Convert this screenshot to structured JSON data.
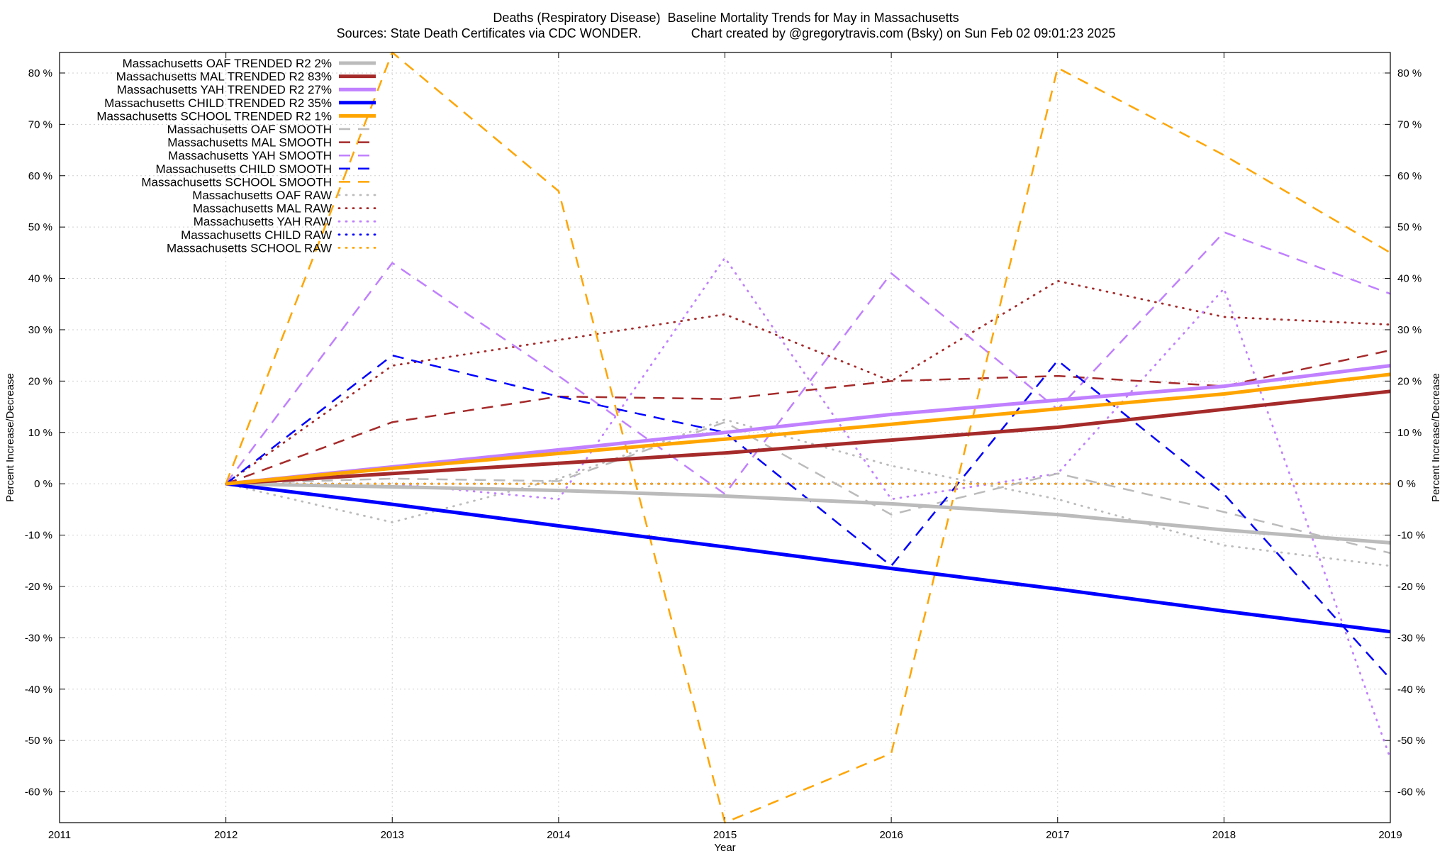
{
  "title": {
    "line1": "Deaths (Respiratory Disease)  Baseline Mortality Trends for May in Massachusetts",
    "line2": "Sources: State Death Certificates via CDC WONDER.              Chart created by @gregorytravis.com (Bsky) on Sun Feb 02 09:01:23 2025"
  },
  "chart_data": {
    "type": "line",
    "xlabel": "Year",
    "ylabel": "Percent Increase/Decrease",
    "y2label": "Percent Increase/Decrease",
    "xlim": [
      2011,
      2019
    ],
    "ylim": [
      -66,
      84
    ],
    "xticks": [
      2011,
      2012,
      2013,
      2014,
      2015,
      2016,
      2017,
      2018,
      2019
    ],
    "yticks": [
      -60,
      -50,
      -40,
      -30,
      -20,
      -10,
      0,
      10,
      20,
      30,
      40,
      50,
      60,
      70,
      80
    ],
    "ytick_suffix": " %",
    "grid": true,
    "legend_position": "top-left",
    "series": [
      {
        "name": "Massachusetts OAF TRENDED R2  2%",
        "color": "#bbbbbb",
        "style": "solid",
        "x": [
          2012,
          2013,
          2014,
          2015,
          2016,
          2017,
          2018,
          2019
        ],
        "values": [
          0,
          -0.6,
          -1.3,
          -2.4,
          -3.9,
          -6.0,
          -9.0,
          -11.5
        ]
      },
      {
        "name": "Massachusetts MAL TRENDED R2  83%",
        "color": "#a52a2a",
        "style": "solid",
        "x": [
          2012,
          2013,
          2014,
          2015,
          2016,
          2017,
          2018,
          2019
        ],
        "values": [
          0,
          2.0,
          4.0,
          6.0,
          8.5,
          11.0,
          14.5,
          18.0
        ]
      },
      {
        "name": "Massachusetts YAH TRENDED R2  27%",
        "color": "#c080ff",
        "style": "solid",
        "x": [
          2012,
          2013,
          2014,
          2015,
          2016,
          2017,
          2018,
          2019
        ],
        "values": [
          0,
          3.3,
          6.6,
          10.0,
          13.5,
          16.3,
          19.0,
          23.0
        ]
      },
      {
        "name": "Massachusetts CHILD TRENDED R2  35%",
        "color": "#0000ff",
        "style": "solid",
        "x": [
          2012,
          2013,
          2014,
          2015,
          2016,
          2017,
          2018,
          2019
        ],
        "values": [
          0,
          -4.0,
          -8.2,
          -12.3,
          -16.5,
          -20.5,
          -24.8,
          -28.8
        ]
      },
      {
        "name": "Massachusetts SCHOOL TRENDED R2  1%",
        "color": "#ffa500",
        "style": "solid",
        "x": [
          2012,
          2013,
          2014,
          2015,
          2016,
          2017,
          2018,
          2019
        ],
        "values": [
          0,
          3.0,
          5.9,
          8.7,
          11.6,
          14.6,
          17.5,
          21.3
        ]
      },
      {
        "name": "Massachusetts OAF SMOOTH",
        "color": "#bbbbbb",
        "style": "dashed",
        "x": [
          2012,
          2013,
          2014,
          2015,
          2016,
          2017,
          2018,
          2019
        ],
        "values": [
          0,
          1.0,
          0.5,
          12.0,
          -6.0,
          2.0,
          -5.5,
          -13.5
        ]
      },
      {
        "name": "Massachusetts MAL SMOOTH",
        "color": "#a52a2a",
        "style": "dashed",
        "x": [
          2012,
          2013,
          2014,
          2015,
          2016,
          2017,
          2018,
          2019
        ],
        "values": [
          0,
          12.0,
          17.0,
          16.5,
          20.0,
          21.0,
          19.0,
          26.0
        ]
      },
      {
        "name": "Massachusetts YAH SMOOTH",
        "color": "#c080ff",
        "style": "dashed",
        "x": [
          2012,
          2013,
          2014,
          2015,
          2016,
          2017,
          2018,
          2019
        ],
        "values": [
          0,
          43.0,
          21.0,
          -2.0,
          41.0,
          14.5,
          49.0,
          37.0
        ]
      },
      {
        "name": "Massachusetts CHILD SMOOTH",
        "color": "#0000ff",
        "style": "dashed",
        "x": [
          2012,
          2013,
          2014,
          2015,
          2016,
          2017,
          2018,
          2019
        ],
        "values": [
          0,
          25.0,
          17.0,
          10.0,
          -16.0,
          24.0,
          -2.0,
          -38.0
        ]
      },
      {
        "name": "Massachusetts SCHOOL SMOOTH",
        "color": "#ffa500",
        "style": "dashed",
        "x": [
          2012,
          2013,
          2014,
          2015,
          2016,
          2017,
          2018,
          2019
        ],
        "values": [
          0,
          85.0,
          57.0,
          -66.0,
          -52.5,
          81.0,
          64.0,
          45.0
        ]
      },
      {
        "name": "Massachusetts OAF RAW",
        "color": "#bbbbbb",
        "style": "dotted",
        "x": [
          2012,
          2013,
          2014,
          2015,
          2016,
          2017,
          2018,
          2019
        ],
        "values": [
          0,
          -7.5,
          1.0,
          12.5,
          3.5,
          -3.0,
          -12.0,
          -16.0
        ]
      },
      {
        "name": "Massachusetts MAL RAW",
        "color": "#a52a2a",
        "style": "dotted",
        "x": [
          2012,
          2013,
          2014,
          2015,
          2016,
          2017,
          2018,
          2019
        ],
        "values": [
          0,
          23.0,
          28.0,
          33.0,
          20.0,
          39.5,
          32.5,
          31.0
        ]
      },
      {
        "name": "Massachusetts YAH RAW",
        "color": "#c080ff",
        "style": "dotted",
        "x": [
          2012,
          2013,
          2014,
          2015,
          2016,
          2017,
          2018,
          2019
        ],
        "values": [
          0,
          0.0,
          -3.0,
          44.0,
          -3.0,
          2.0,
          38.0,
          -53.5
        ]
      },
      {
        "name": "Massachusetts CHILD RAW",
        "color": "#0000ff",
        "style": "dotted",
        "x": [
          2012,
          2013,
          2014,
          2015,
          2016,
          2017,
          2018,
          2019
        ],
        "values": [
          0,
          0,
          0,
          0,
          0,
          0,
          0,
          0
        ]
      },
      {
        "name": "Massachusetts SCHOOL RAW",
        "color": "#ffa500",
        "style": "dotted",
        "x": [
          2012,
          2013,
          2014,
          2015,
          2016,
          2017,
          2018,
          2019
        ],
        "values": [
          0,
          0,
          0,
          0,
          0,
          0,
          0,
          0
        ]
      }
    ]
  }
}
